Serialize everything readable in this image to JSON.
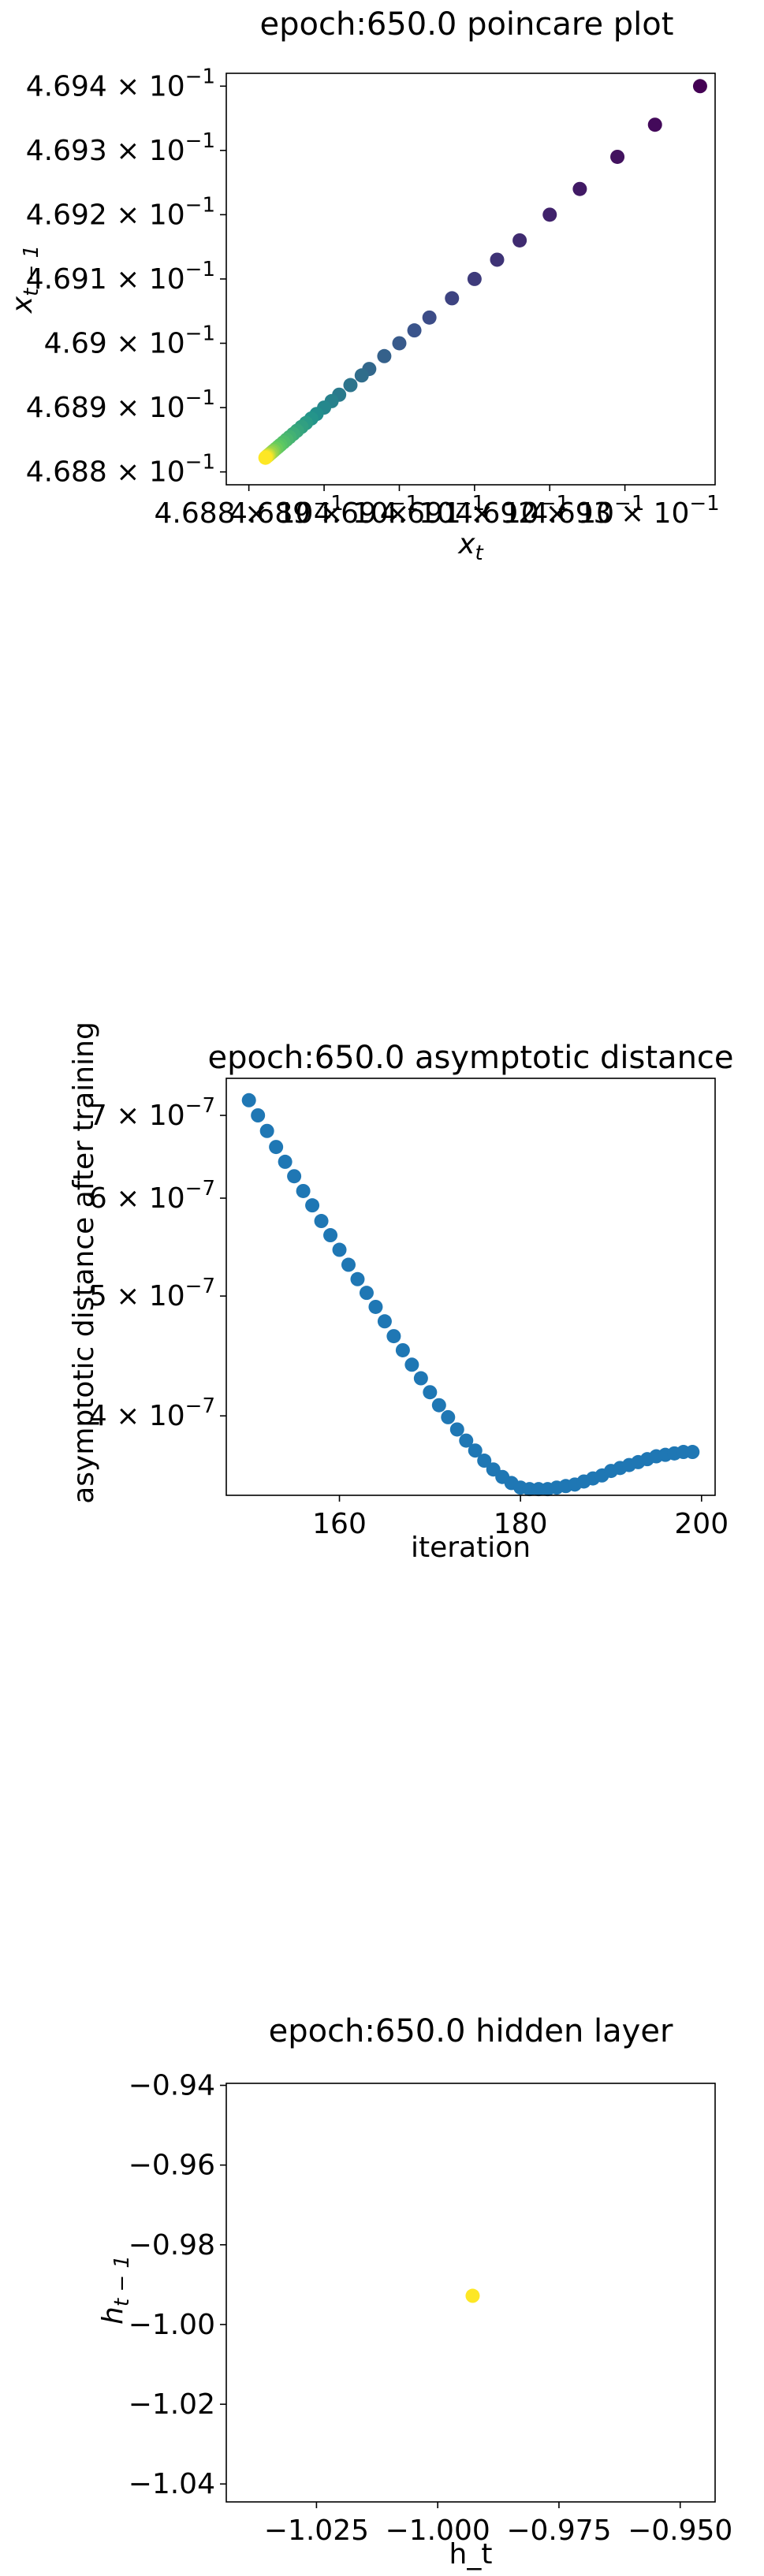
{
  "chart_data": [
    {
      "type": "scatter",
      "title": "epoch:650.0 poincare plot",
      "xlabel": "x_t",
      "ylabel": "x_{t-1}",
      "xscale": "log",
      "yscale": "log",
      "xlim": [
        0.46877,
        0.46942
      ],
      "ylim": [
        0.46878,
        0.46942
      ],
      "xticks": [
        {
          "value": 0.4688,
          "mantissa": "4.688",
          "exp": "−1"
        },
        {
          "value": 0.4689,
          "mantissa": "4.689",
          "exp": "−1"
        },
        {
          "value": 0.469,
          "mantissa": "4.69",
          "exp": "−1"
        },
        {
          "value": 0.4691,
          "mantissa": "4.691",
          "exp": "−1"
        },
        {
          "value": 0.4692,
          "mantissa": "4.692",
          "exp": "−1"
        },
        {
          "value": 0.4693,
          "mantissa": "4.693",
          "exp": "−1"
        }
      ],
      "yticks": [
        {
          "value": 0.4688,
          "mantissa": "4.688",
          "exp": "−1"
        },
        {
          "value": 0.4689,
          "mantissa": "4.689",
          "exp": "−1"
        },
        {
          "value": 0.469,
          "mantissa": "4.69",
          "exp": "−1"
        },
        {
          "value": 0.4691,
          "mantissa": "4.691",
          "exp": "−1"
        },
        {
          "value": 0.4692,
          "mantissa": "4.692",
          "exp": "−1"
        },
        {
          "value": 0.4693,
          "mantissa": "4.693",
          "exp": "−1"
        },
        {
          "value": 0.4694,
          "mantissa": "4.694",
          "exp": "−1"
        }
      ],
      "colormap": "viridis",
      "points": [
        [
          0.4694,
          0.4694
        ],
        [
          0.46934,
          0.46934
        ],
        [
          0.46929,
          0.46929
        ],
        [
          0.46924,
          0.46924
        ],
        [
          0.4692,
          0.4692
        ],
        [
          0.46916,
          0.46916
        ],
        [
          0.46913,
          0.46913
        ],
        [
          0.4691,
          0.4691
        ],
        [
          0.46907,
          0.46907
        ],
        [
          0.46904,
          0.46904
        ],
        [
          0.46902,
          0.46902
        ],
        [
          0.469,
          0.469
        ],
        [
          0.46898,
          0.46898
        ],
        [
          0.46896,
          0.46896
        ],
        [
          0.46895,
          0.46895
        ],
        [
          0.468935,
          0.468935
        ],
        [
          0.46892,
          0.46892
        ],
        [
          0.46891,
          0.46891
        ],
        [
          0.4689,
          0.4689
        ],
        [
          0.46889,
          0.46889
        ],
        [
          0.468883,
          0.468883
        ],
        [
          0.468876,
          0.468876
        ],
        [
          0.46887,
          0.46887
        ],
        [
          0.468864,
          0.468864
        ],
        [
          0.468859,
          0.468859
        ],
        [
          0.468854,
          0.468854
        ],
        [
          0.46885,
          0.46885
        ],
        [
          0.468846,
          0.468846
        ],
        [
          0.468842,
          0.468842
        ],
        [
          0.468839,
          0.468839
        ],
        [
          0.468836,
          0.468836
        ],
        [
          0.468833,
          0.468833
        ],
        [
          0.468831,
          0.468831
        ],
        [
          0.468829,
          0.468829
        ],
        [
          0.468827,
          0.468827
        ],
        [
          0.468826,
          0.468826
        ],
        [
          0.468825,
          0.468825
        ],
        [
          0.468824,
          0.468824
        ],
        [
          0.468823,
          0.468823
        ],
        [
          0.468822,
          0.468822
        ]
      ]
    },
    {
      "type": "scatter",
      "title": "epoch:650.0 asymptotic distance",
      "xlabel": "iteration",
      "ylabel": "asymptotic distance after training",
      "yscale": "log",
      "xlim": [
        147.5,
        201.5
      ],
      "ylim": [
        3.45e-07,
        7.5e-07
      ],
      "xticks": [
        {
          "value": 160,
          "label": "160"
        },
        {
          "value": 180,
          "label": "180"
        },
        {
          "value": 200,
          "label": "200"
        }
      ],
      "yticks": [
        {
          "value": 4e-07,
          "mantissa": "4",
          "exp": "−7"
        },
        {
          "value": 5e-07,
          "mantissa": "5",
          "exp": "−7"
        },
        {
          "value": 6e-07,
          "mantissa": "6",
          "exp": "−7"
        },
        {
          "value": 7e-07,
          "mantissa": "7",
          "exp": "−7"
        }
      ],
      "color": "#1f77b4",
      "x": [
        150,
        151,
        152,
        153,
        154,
        155,
        156,
        157,
        158,
        159,
        160,
        161,
        162,
        163,
        164,
        165,
        166,
        167,
        168,
        169,
        170,
        171,
        172,
        173,
        174,
        175,
        176,
        177,
        178,
        179,
        180,
        181,
        182,
        183,
        184,
        185,
        186,
        187,
        188,
        189,
        190,
        191,
        192,
        193,
        194,
        195,
        196,
        197,
        198,
        199
      ],
      "y": [
        7.2e-07,
        7e-07,
        6.8e-07,
        6.6e-07,
        6.42e-07,
        6.25e-07,
        6.08e-07,
        5.92e-07,
        5.75e-07,
        5.6e-07,
        5.45e-07,
        5.3e-07,
        5.16e-07,
        5.03e-07,
        4.9e-07,
        4.77e-07,
        4.64e-07,
        4.52e-07,
        4.4e-07,
        4.29e-07,
        4.18e-07,
        4.08e-07,
        3.99e-07,
        3.9e-07,
        3.82e-07,
        3.75e-07,
        3.68e-07,
        3.62e-07,
        3.57e-07,
        3.53e-07,
        3.5e-07,
        3.49e-07,
        3.49e-07,
        3.49e-07,
        3.5e-07,
        3.51e-07,
        3.52e-07,
        3.54e-07,
        3.56e-07,
        3.58e-07,
        3.61e-07,
        3.63e-07,
        3.65e-07,
        3.67e-07,
        3.69e-07,
        3.71e-07,
        3.72e-07,
        3.73e-07,
        3.74e-07,
        3.74e-07
      ]
    },
    {
      "type": "scatter",
      "title": "epoch:650.0 hidden layer",
      "xlabel": "h_t",
      "ylabel": "h_{t-1}",
      "xlim": [
        -1.0436,
        -0.9428
      ],
      "ylim": [
        -1.0445,
        -0.9395
      ],
      "xticks": [
        {
          "value": -1.025,
          "label": "−1.025"
        },
        {
          "value": -1.0,
          "label": "−1.000"
        },
        {
          "value": -0.975,
          "label": "−0.975"
        },
        {
          "value": -0.95,
          "label": "−0.950"
        }
      ],
      "yticks": [
        {
          "value": -0.94,
          "label": "−0.94"
        },
        {
          "value": -0.96,
          "label": "−0.96"
        },
        {
          "value": -0.98,
          "label": "−0.98"
        },
        {
          "value": -1.0,
          "label": "−1.00"
        },
        {
          "value": -1.02,
          "label": "−1.02"
        },
        {
          "value": -1.04,
          "label": "−1.04"
        }
      ],
      "color": "#fde725",
      "points": [
        [
          -0.9928,
          -0.9928
        ]
      ]
    }
  ]
}
